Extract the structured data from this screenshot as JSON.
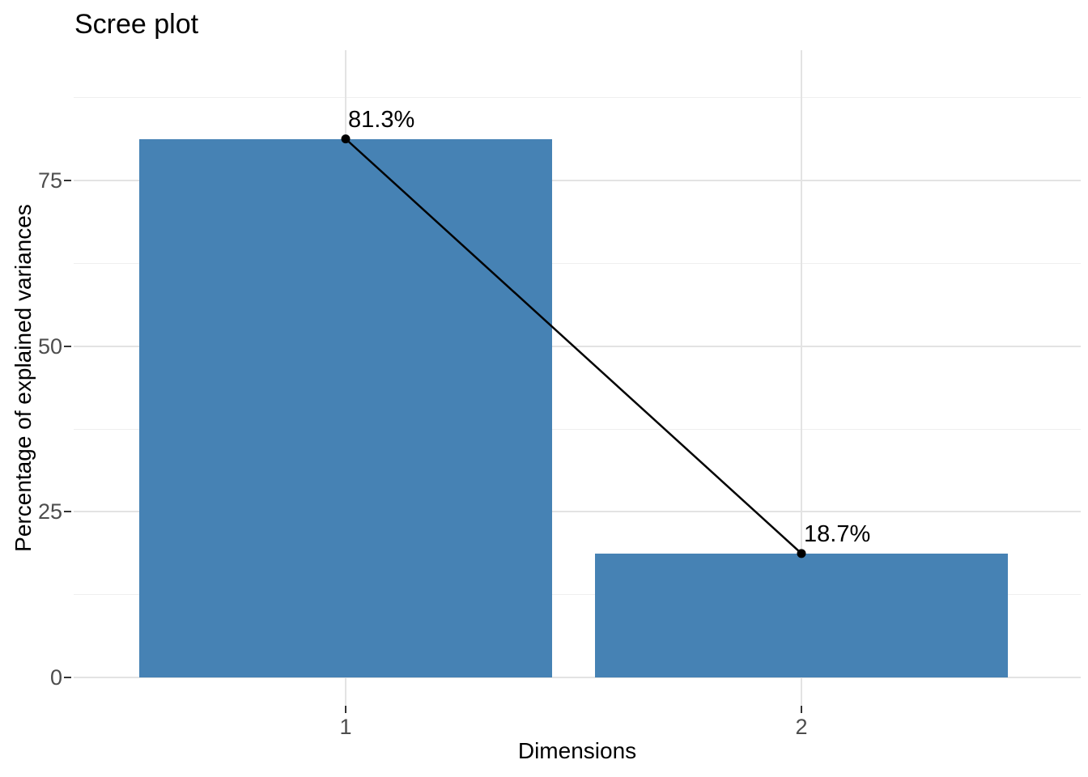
{
  "chart_data": {
    "type": "bar",
    "title": "Scree plot",
    "xlabel": "Dimensions",
    "ylabel": "Percentage of explained variances",
    "categories": [
      "1",
      "2"
    ],
    "values": [
      81.3,
      18.7
    ],
    "value_labels": [
      "81.3%",
      "18.7%"
    ],
    "y_ticks": [
      0,
      25,
      50,
      75
    ],
    "y_minor_ticks": [
      12.5,
      37.5,
      62.5,
      87.5
    ],
    "ylim": [
      -4.3,
      94.7
    ],
    "bar_fill": "#4682B4",
    "line_color": "#000000",
    "point_color": "#000000",
    "grid": "horizontal major+minor, vertical major at each category",
    "legend": "none",
    "overlay": "line with points connecting bar tops",
    "theme": {
      "background": "#FFFFFF",
      "grid_major_color": "#E3E3E3",
      "grid_minor_color": "#EFEFEF",
      "tick_label_color": "#4D4D4D",
      "tick_mark_color": "#333333",
      "text_color": "#000000"
    }
  }
}
